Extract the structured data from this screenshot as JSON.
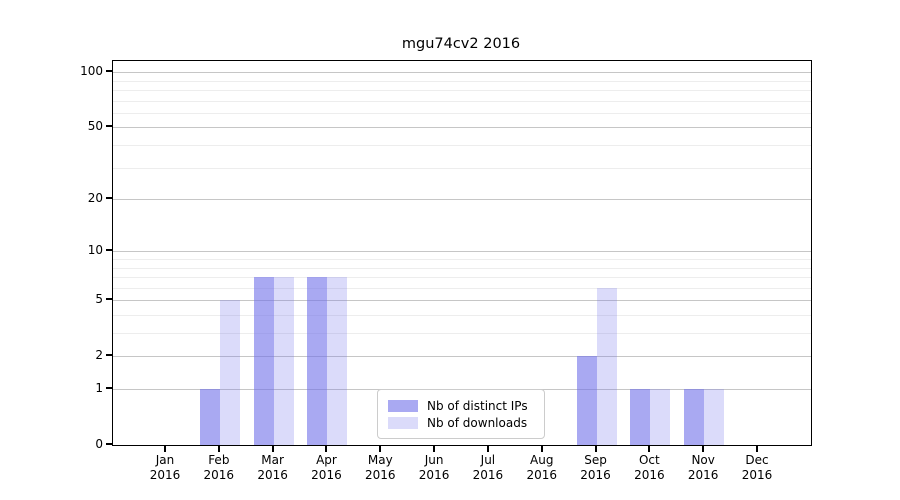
{
  "title": "mgu74cv2 2016",
  "chart_data": {
    "type": "bar",
    "title": "mgu74cv2 2016",
    "categories": [
      "Jan",
      "Feb",
      "Mar",
      "Apr",
      "May",
      "Jun",
      "Jul",
      "Aug",
      "Sep",
      "Oct",
      "Nov",
      "Dec"
    ],
    "category_year": "2016",
    "series": [
      {
        "name": "Nb of distinct IPs",
        "key": "distinct-ips",
        "color": "rgba(112,112,234,0.6)",
        "values": [
          0,
          1,
          7,
          7,
          0,
          0,
          0,
          0,
          2,
          1,
          1,
          0
        ]
      },
      {
        "name": "Nb of downloads",
        "key": "downloads",
        "color": "rgba(112,112,234,0.25)",
        "values": [
          0,
          5,
          7,
          7,
          0,
          0,
          0,
          0,
          6,
          1,
          1,
          0
        ]
      }
    ],
    "yscale": "log1p",
    "ylim": [
      0,
      115
    ],
    "yticks": [
      0,
      1,
      2,
      5,
      10,
      20,
      50,
      100
    ],
    "minor_yticks": [
      3,
      4,
      6,
      7,
      8,
      9,
      30,
      40,
      60,
      70,
      80,
      90
    ],
    "grid": true,
    "legend_position": "bottom-center",
    "xlabel": "",
    "ylabel": ""
  },
  "colors": {
    "background": "#ffffff",
    "axis": "#000000",
    "grid_major": "#c6c6c6",
    "grid_minor": "#ededed",
    "bar_base": "#7070ea"
  }
}
